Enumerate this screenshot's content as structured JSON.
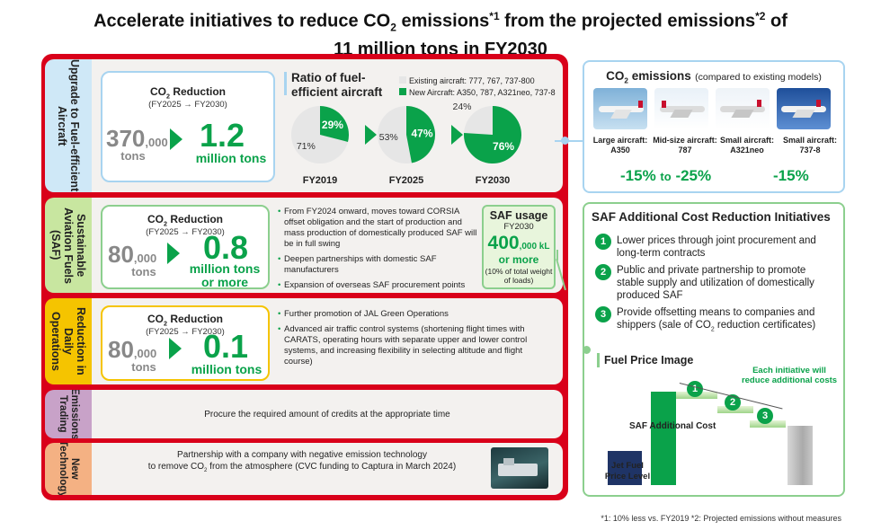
{
  "title": {
    "line1_a": "Accelerate initiatives to reduce  CO",
    "line1_sub": "2",
    "line1_b": " emissions",
    "line1_sup1": "*1",
    "line1_c": " from the projected emissions",
    "line1_sup2": "*2",
    "line1_d": " of",
    "line2": "11 million tons in FY2030"
  },
  "sections": {
    "aircraft": {
      "label": "Upgrade to Fuel-efficient Aircraft",
      "reduction_title_a": "CO",
      "reduction_title_sub": "2",
      "reduction_title_b": " Reduction",
      "period": "(FY2025 → FY2030)",
      "from_value": "370",
      "from_suffix": ",000",
      "from_unit": "tons",
      "to_value": "1.2",
      "to_unit": "million tons",
      "ratio_title": "Ratio of fuel-efficient aircraft",
      "legend_existing": "Existing aircraft: 777, 767, 737-800",
      "legend_new": "New Aircraft: A350, 787, A321neo, 737-8"
    },
    "saf": {
      "label": "Sustainable Aviation Fuels (SAF)",
      "reduction_title_a": "CO",
      "reduction_title_sub": "2",
      "reduction_title_b": " Reduction",
      "period": "(FY2025 → FY2030)",
      "from_value": "80",
      "from_suffix": ",000",
      "from_unit": "tons",
      "to_value": "0.8",
      "to_unit_1": "million tons",
      "to_unit_2": "or more",
      "bullets": [
        "From FY2024 onward, moves toward CORSIA offset obligation and the start of production and mass production of domestically produced SAF will be in full swing",
        "Deepen partnerships with domestic SAF manufacturers",
        "Expansion of overseas SAF procurement points"
      ],
      "usage_title": "SAF usage",
      "usage_year": "FY2030",
      "usage_value": "400",
      "usage_suffix": ",000 kL",
      "usage_more": "or more",
      "usage_note": "(10% of total weight of loads)"
    },
    "operations": {
      "label": "Reduction in Daily Operations",
      "reduction_title_a": "CO",
      "reduction_title_sub": "2",
      "reduction_title_b": " Reduction",
      "period": "(FY2025 → FY2030)",
      "from_value": "80",
      "from_suffix": ",000",
      "from_unit": "tons",
      "to_value": "0.1",
      "to_unit": "million tons",
      "bullets": [
        "Further promotion of JAL Green Operations",
        "Advanced air traffic control systems (shortening flight times with CARATS, operating hours with separate upper and lower control systems, and increasing flexibility in selecting altitude and flight course)"
      ]
    },
    "trading": {
      "label": "Emissions Trading",
      "text": "Procure the required amount of credits at the appropriate time"
    },
    "technology": {
      "label": "New Technology",
      "text_1": "Partnership with a company with negative emission technology",
      "text_2a": "to remove CO",
      "text_2sub": "2",
      "text_2b": " from the atmosphere (CVC funding to Captura in March 2024)"
    }
  },
  "emissions_panel": {
    "title_a": "CO",
    "title_sub": "2",
    "title_b": " emissions",
    "title_note": "(compared to existing models)",
    "planes": [
      {
        "label_1": "Large aircraft:",
        "label_2": "A350"
      },
      {
        "label_1": "Mid-size aircraft:",
        "label_2": "787"
      },
      {
        "label_1": "Small aircraft:",
        "label_2": "A321neo"
      },
      {
        "label_1": "Small aircraft:",
        "label_2": "737-8"
      }
    ],
    "range_a": "-15%",
    "range_to": "to",
    "range_b": "-25%",
    "small_value": "-15%"
  },
  "saf_cost": {
    "title": "SAF Additional Cost Reduction Initiatives",
    "items": [
      {
        "num": "1",
        "text": "Lower prices through joint procurement and long-term contracts"
      },
      {
        "num": "2",
        "text": "Public and private partnership to promote stable supply and utilization of domestically produced SAF"
      },
      {
        "num": "3",
        "text_a": "Provide offsetting means to companies and shippers (sale of CO",
        "text_sub": "2",
        "text_b": " reduction certificates)"
      }
    ]
  },
  "fuel_price": {
    "title": "Fuel Price Image",
    "note": "Each initiative will reduce additional costs",
    "saf_cost_label": "SAF Additional Cost",
    "jet_fuel_label_1": "Jet Fuel",
    "jet_fuel_label_2": "Price Level",
    "steps": [
      "1",
      "2",
      "3"
    ]
  },
  "footnote": "*1: 10% less vs. FY2019  *2: Projected emissions without measures",
  "chart_data": {
    "type": "pie",
    "title": "Ratio of fuel-efficient aircraft",
    "series_names": [
      "Existing aircraft: 777, 767, 737-800",
      "New Aircraft: A350, 787, A321neo, 737-8"
    ],
    "pies": [
      {
        "label": "FY2019",
        "existing": 71,
        "new": 29
      },
      {
        "label": "FY2025",
        "existing": 53,
        "new": 47
      },
      {
        "label": "FY2030",
        "existing": 24,
        "new": 76
      }
    ],
    "colors": {
      "existing": "#e6e6e6",
      "new": "#0aa24a"
    }
  },
  "colors": {
    "red": "#d9001a",
    "green": "#0aa24a",
    "aircraft_band": "#cfe8f7",
    "saf_band": "#c8e6a0",
    "ops_band": "#f5c400",
    "trading_band": "#c8a2c8",
    "tech_band": "#f4b183"
  }
}
